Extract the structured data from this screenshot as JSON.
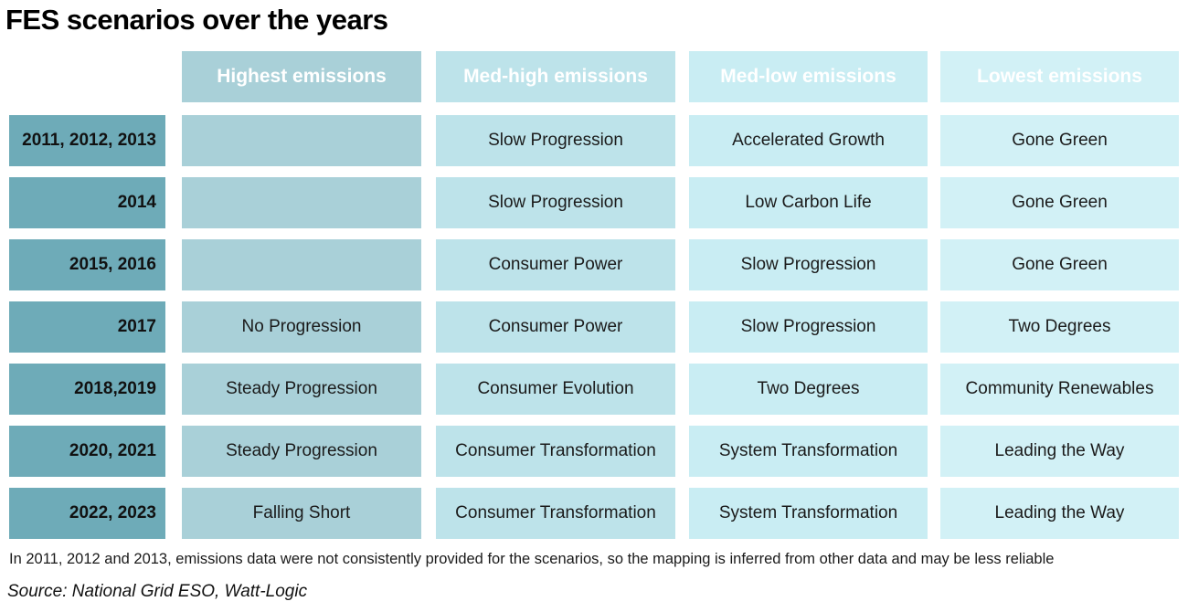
{
  "title": "FES scenarios over the years",
  "chart_data": {
    "type": "table",
    "columns": [
      "Highest emissions",
      "Med-high emissions",
      "Med-low emissions",
      "Lowest emissions"
    ],
    "rows": [
      {
        "year": "2011, 2012, 2013",
        "cells": [
          "",
          "Slow Progression",
          "Accelerated Growth",
          "Gone Green"
        ]
      },
      {
        "year": "2014",
        "cells": [
          "",
          "Slow Progression",
          "Low Carbon Life",
          "Gone Green"
        ]
      },
      {
        "year": "2015, 2016",
        "cells": [
          "",
          "Consumer Power",
          "Slow Progression",
          "Gone Green"
        ]
      },
      {
        "year": "2017",
        "cells": [
          "No Progression",
          "Consumer Power",
          "Slow Progression",
          "Two Degrees"
        ]
      },
      {
        "year": "2018,2019",
        "cells": [
          "Steady Progression",
          "Consumer Evolution",
          "Two Degrees",
          "Community Renewables"
        ]
      },
      {
        "year": "2020, 2021",
        "cells": [
          "Steady Progression",
          "Consumer Transformation",
          "System Transformation",
          "Leading the Way"
        ]
      },
      {
        "year": "2022, 2023",
        "cells": [
          "Falling Short",
          "Consumer Transformation",
          "System Transformation",
          "Leading the Way"
        ]
      }
    ]
  },
  "note": "In 2011, 2012 and 2013, emissions data were not consistently provided for the scenarios, so the mapping is inferred from other data and may be less reliable",
  "source": "Source: National Grid ESO, Watt-Logic",
  "colors": {
    "header": "#4a8fa4",
    "year_cell": "#6eabb8",
    "highest": "#a9d0d8",
    "med_high": "#bde3ea",
    "med_low": "#c9edf3",
    "lowest": "#d2f1f6"
  }
}
